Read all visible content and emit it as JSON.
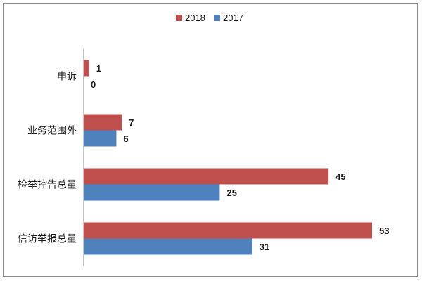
{
  "chart_data": {
    "type": "bar",
    "orientation": "horizontal",
    "categories": [
      "申诉",
      "业务范围外",
      "检举控告总量",
      "信访举报总量"
    ],
    "series": [
      {
        "name": "2018",
        "color": "#c0504d",
        "values": [
          1,
          7,
          45,
          53
        ]
      },
      {
        "name": "2017",
        "color": "#4f81bd",
        "values": [
          0,
          6,
          25,
          31
        ]
      }
    ],
    "legend_order": [
      "2018",
      "2017"
    ],
    "legend_position": "top-center",
    "xlim": [
      0,
      60
    ],
    "grid": false,
    "title": "",
    "xlabel": "",
    "ylabel": ""
  }
}
